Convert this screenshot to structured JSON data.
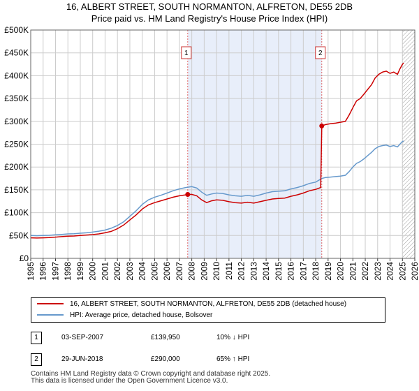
{
  "chart_data": {
    "type": "line",
    "title": "16, ALBERT STREET, SOUTH NORMANTON, ALFRETON, DE55 2DB",
    "subtitle": "Price paid vs. HM Land Registry's House Price Index (HPI)",
    "xlabel": "",
    "ylabel": "",
    "xlim": [
      1995,
      2026
    ],
    "ylim": [
      0,
      500000
    ],
    "x_ticks": [
      "1995",
      "1996",
      "1997",
      "1998",
      "1999",
      "2000",
      "2001",
      "2002",
      "2003",
      "2004",
      "2005",
      "2006",
      "2007",
      "2008",
      "2009",
      "2010",
      "2011",
      "2012",
      "2013",
      "2014",
      "2015",
      "2016",
      "2017",
      "2018",
      "2019",
      "2020",
      "2021",
      "2022",
      "2023",
      "2024",
      "2025",
      "2026"
    ],
    "y_ticks": [
      {
        "value": 0,
        "label": "£0"
      },
      {
        "value": 50000,
        "label": "£50K"
      },
      {
        "value": 100000,
        "label": "£100K"
      },
      {
        "value": 150000,
        "label": "£150K"
      },
      {
        "value": 200000,
        "label": "£200K"
      },
      {
        "value": 250000,
        "label": "£250K"
      },
      {
        "value": 300000,
        "label": "£300K"
      },
      {
        "value": 350000,
        "label": "£350K"
      },
      {
        "value": 400000,
        "label": "£400K"
      },
      {
        "value": 450000,
        "label": "£450K"
      },
      {
        "value": 500000,
        "label": "£500K"
      }
    ],
    "grid": true,
    "shaded_regions": [
      {
        "from": 2007.67,
        "to": 2018.49
      }
    ],
    "hatched_region": {
      "from": 2025.0,
      "to": 2026.0
    },
    "series": [
      {
        "name": "16, ALBERT STREET, SOUTH NORMANTON, ALFRETON, DE55 2DB (detached house)",
        "color": "#cc0000",
        "points": [
          [
            1995.0,
            45000
          ],
          [
            1995.5,
            44500
          ],
          [
            1996.0,
            45000
          ],
          [
            1996.5,
            45500
          ],
          [
            1997.0,
            46500
          ],
          [
            1997.5,
            47500
          ],
          [
            1998.0,
            48500
          ],
          [
            1998.5,
            49000
          ],
          [
            1999.0,
            50000
          ],
          [
            1999.5,
            51000
          ],
          [
            2000.0,
            52000
          ],
          [
            2000.5,
            53500
          ],
          [
            2001.0,
            56000
          ],
          [
            2001.5,
            59000
          ],
          [
            2002.0,
            65000
          ],
          [
            2002.5,
            73000
          ],
          [
            2003.0,
            84000
          ],
          [
            2003.5,
            95000
          ],
          [
            2004.0,
            108000
          ],
          [
            2004.5,
            117000
          ],
          [
            2005.0,
            122000
          ],
          [
            2005.5,
            126000
          ],
          [
            2006.0,
            130000
          ],
          [
            2006.5,
            134000
          ],
          [
            2007.0,
            137000
          ],
          [
            2007.5,
            139000
          ],
          [
            2007.67,
            139950
          ],
          [
            2008.0,
            140000
          ],
          [
            2008.4,
            137000
          ],
          [
            2008.8,
            128000
          ],
          [
            2009.2,
            122000
          ],
          [
            2009.6,
            126000
          ],
          [
            2010.0,
            128000
          ],
          [
            2010.5,
            127000
          ],
          [
            2011.0,
            124000
          ],
          [
            2011.5,
            122000
          ],
          [
            2012.0,
            121000
          ],
          [
            2012.5,
            123000
          ],
          [
            2013.0,
            121000
          ],
          [
            2013.5,
            124000
          ],
          [
            2014.0,
            127000
          ],
          [
            2014.5,
            130000
          ],
          [
            2015.0,
            131000
          ],
          [
            2015.5,
            132000
          ],
          [
            2016.0,
            136000
          ],
          [
            2016.5,
            139000
          ],
          [
            2017.0,
            143000
          ],
          [
            2017.5,
            148000
          ],
          [
            2018.0,
            151000
          ],
          [
            2018.4,
            155000
          ],
          [
            2018.49,
            290000
          ],
          [
            2018.8,
            293000
          ],
          [
            2019.2,
            295000
          ],
          [
            2019.6,
            296000
          ],
          [
            2020.0,
            298000
          ],
          [
            2020.4,
            300000
          ],
          [
            2020.7,
            314000
          ],
          [
            2021.0,
            330000
          ],
          [
            2021.3,
            345000
          ],
          [
            2021.6,
            350000
          ],
          [
            2021.9,
            360000
          ],
          [
            2022.2,
            370000
          ],
          [
            2022.5,
            380000
          ],
          [
            2022.8,
            395000
          ],
          [
            2023.1,
            403000
          ],
          [
            2023.4,
            408000
          ],
          [
            2023.7,
            410000
          ],
          [
            2024.0,
            405000
          ],
          [
            2024.3,
            408000
          ],
          [
            2024.6,
            403000
          ],
          [
            2024.8,
            415000
          ],
          [
            2025.0,
            425000
          ],
          [
            2025.1,
            428000
          ]
        ]
      },
      {
        "name": "HPI: Average price, detached house, Bolsover",
        "color": "#6699cc",
        "points": [
          [
            1995.0,
            50000
          ],
          [
            1995.5,
            49500
          ],
          [
            1996.0,
            50000
          ],
          [
            1996.5,
            50500
          ],
          [
            1997.0,
            51500
          ],
          [
            1997.5,
            52500
          ],
          [
            1998.0,
            53500
          ],
          [
            1998.5,
            54000
          ],
          [
            1999.0,
            55000
          ],
          [
            1999.5,
            56000
          ],
          [
            2000.0,
            57500
          ],
          [
            2000.5,
            59500
          ],
          [
            2001.0,
            62000
          ],
          [
            2001.5,
            66000
          ],
          [
            2002.0,
            72000
          ],
          [
            2002.5,
            80000
          ],
          [
            2003.0,
            92000
          ],
          [
            2003.5,
            104000
          ],
          [
            2004.0,
            118000
          ],
          [
            2004.5,
            128000
          ],
          [
            2005.0,
            134000
          ],
          [
            2005.5,
            138000
          ],
          [
            2006.0,
            143000
          ],
          [
            2006.5,
            148000
          ],
          [
            2007.0,
            152000
          ],
          [
            2007.5,
            155000
          ],
          [
            2008.0,
            157000
          ],
          [
            2008.4,
            154000
          ],
          [
            2008.8,
            145000
          ],
          [
            2009.2,
            138000
          ],
          [
            2009.6,
            141000
          ],
          [
            2010.0,
            143000
          ],
          [
            2010.5,
            142000
          ],
          [
            2011.0,
            139000
          ],
          [
            2011.5,
            137000
          ],
          [
            2012.0,
            136000
          ],
          [
            2012.5,
            138000
          ],
          [
            2013.0,
            136000
          ],
          [
            2013.5,
            139000
          ],
          [
            2014.0,
            143000
          ],
          [
            2014.5,
            146000
          ],
          [
            2015.0,
            147000
          ],
          [
            2015.5,
            148000
          ],
          [
            2016.0,
            152000
          ],
          [
            2016.5,
            155000
          ],
          [
            2017.0,
            159000
          ],
          [
            2017.5,
            164000
          ],
          [
            2018.0,
            167000
          ],
          [
            2018.49,
            175000
          ],
          [
            2018.8,
            177000
          ],
          [
            2019.2,
            178000
          ],
          [
            2019.6,
            179000
          ],
          [
            2020.0,
            180000
          ],
          [
            2020.4,
            182000
          ],
          [
            2020.7,
            190000
          ],
          [
            2021.0,
            200000
          ],
          [
            2021.3,
            208000
          ],
          [
            2021.6,
            212000
          ],
          [
            2021.9,
            218000
          ],
          [
            2022.2,
            225000
          ],
          [
            2022.5,
            232000
          ],
          [
            2022.8,
            240000
          ],
          [
            2023.1,
            245000
          ],
          [
            2023.4,
            247000
          ],
          [
            2023.7,
            248000
          ],
          [
            2024.0,
            245000
          ],
          [
            2024.3,
            247000
          ],
          [
            2024.6,
            244000
          ],
          [
            2024.8,
            250000
          ],
          [
            2025.0,
            256000
          ],
          [
            2025.1,
            257000
          ]
        ]
      }
    ],
    "markers": [
      {
        "label": "1",
        "x": 2007.67,
        "y": 139950
      },
      {
        "label": "2",
        "x": 2018.49,
        "y": 290000
      }
    ],
    "legend_position": "below"
  },
  "sales": [
    {
      "num": "1",
      "date": "03-SEP-2007",
      "price": "£139,950",
      "hpi": "10% ↓ HPI"
    },
    {
      "num": "2",
      "date": "29-JUN-2018",
      "price": "£290,000",
      "hpi": "65% ↑ HPI"
    }
  ],
  "footer": {
    "line1": "Contains HM Land Registry data © Crown copyright and database right 2025.",
    "line2": "This data is licensed under the Open Government Licence v3.0."
  },
  "colors": {
    "price_line": "#cc0000",
    "hpi_line": "#6699cc",
    "shade": "#e8eefa",
    "grid": "#cccccc"
  }
}
